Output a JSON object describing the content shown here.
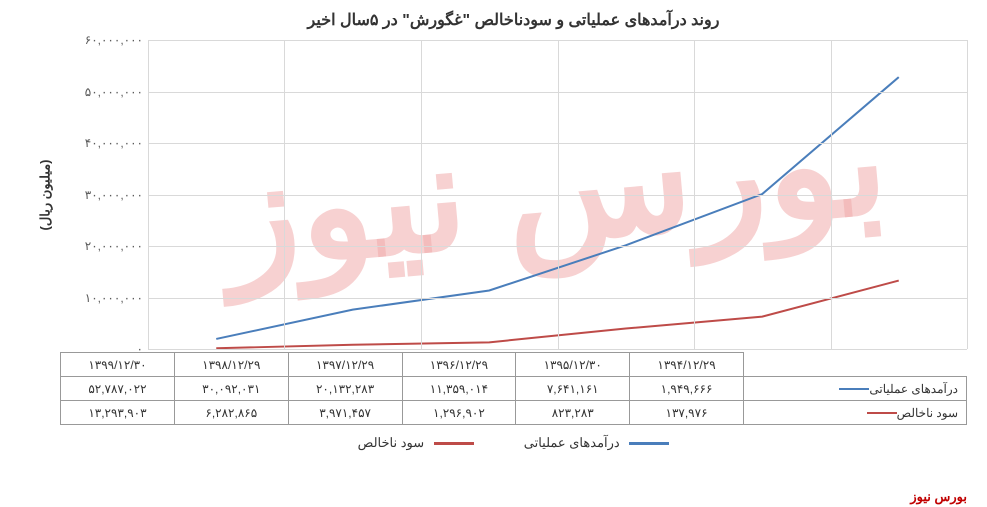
{
  "chart": {
    "title": "روند درآمدهای عملیاتی و سودناخالص \"غگورش\" در ۵سال اخیر",
    "ylabel": "(میلیون ریال)",
    "type": "line",
    "background_color": "#ffffff",
    "grid_color": "#d9d9d9",
    "ylim": [
      0,
      60000000
    ],
    "ytick_step": 10000000,
    "yticks": [
      "۰",
      "۱۰,۰۰۰,۰۰۰",
      "۲۰,۰۰۰,۰۰۰",
      "۳۰,۰۰۰,۰۰۰",
      "۴۰,۰۰۰,۰۰۰",
      "۵۰,۰۰۰,۰۰۰",
      "۶۰,۰۰۰,۰۰۰"
    ],
    "categories": [
      "۱۳۹۴/۱۲/۲۹",
      "۱۳۹۵/۱۲/۳۰",
      "۱۳۹۶/۱۲/۲۹",
      "۱۳۹۷/۱۲/۲۹",
      "۱۳۹۸/۱۲/۲۹",
      "۱۳۹۹/۱۲/۳۰"
    ],
    "series": [
      {
        "name": "درآمدهای عملیاتی",
        "color": "#4a7ebb",
        "line_width": 2,
        "values": [
          1949666,
          7641161,
          11359014,
          20132283,
          30092031,
          52787022
        ],
        "display": [
          "۱,۹۴۹,۶۶۶",
          "۷,۶۴۱,۱۶۱",
          "۱۱,۳۵۹,۰۱۴",
          "۲۰,۱۳۲,۲۸۳",
          "۳۰,۰۹۲,۰۳۱",
          "۵۲,۷۸۷,۰۲۲"
        ]
      },
      {
        "name": "سود ناخالص",
        "color": "#be4b48",
        "line_width": 2,
        "values": [
          137976,
          823283,
          1296902,
          3971457,
          6282865,
          13293903
        ],
        "display": [
          "۱۳۷,۹۷۶",
          "۸۲۳,۲۸۳",
          "۱,۲۹۶,۹۰۲",
          "۳,۹۷۱,۴۵۷",
          "۶,۲۸۲,۸۶۵",
          "۱۳,۲۹۳,۹۰۳"
        ]
      }
    ],
    "title_fontsize": 16,
    "label_fontsize": 13,
    "tick_fontsize": 12
  },
  "watermark": {
    "text": "بورس نیوز",
    "color": "#d84a4a"
  },
  "footer": "بورس نیوز"
}
